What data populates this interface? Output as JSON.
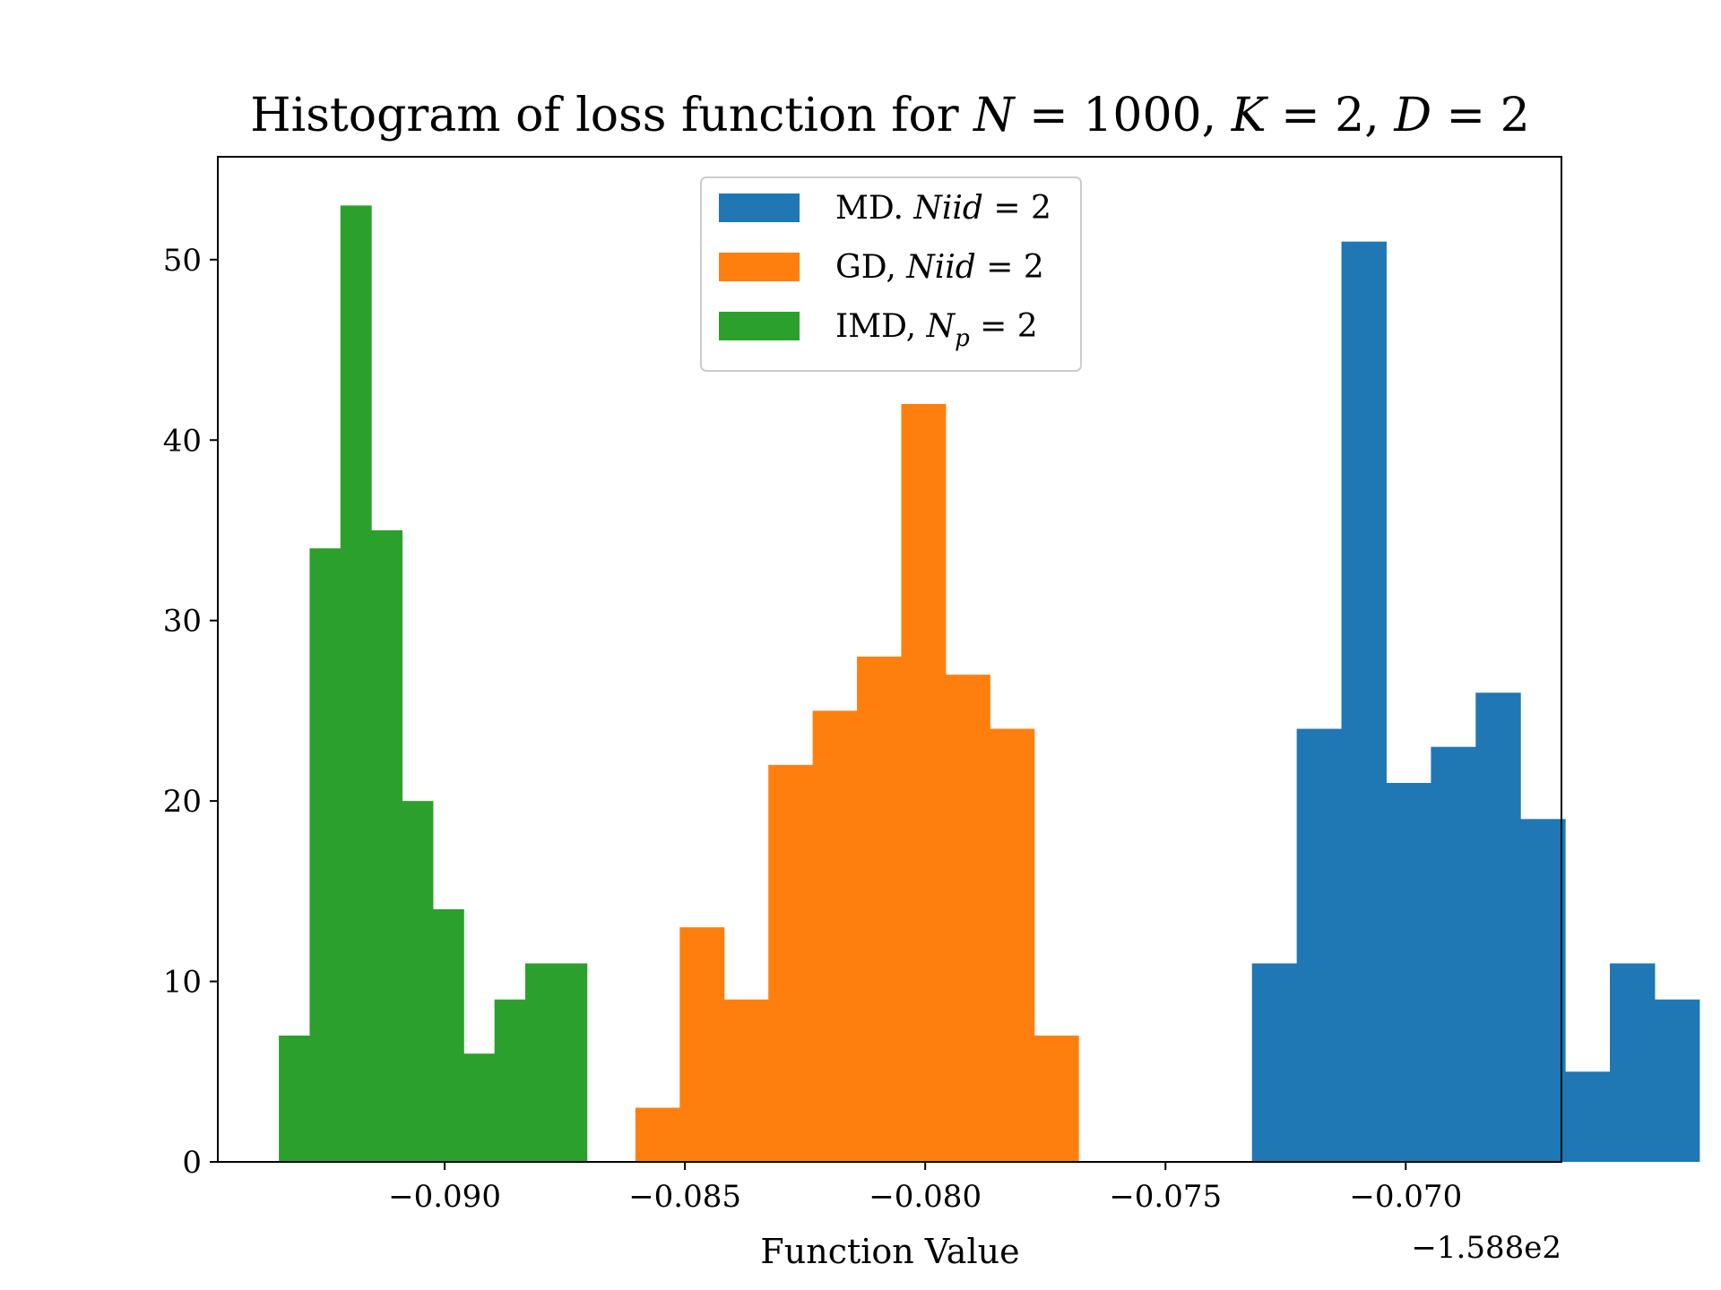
{
  "chart_data": {
    "type": "bar",
    "title": {
      "prefix": "Histogram of loss function for ",
      "n_var": "N",
      "n_eq": " = 1000, ",
      "k_var": "K",
      "k_eq": " = 2, ",
      "d_var": "D",
      "d_eq": " = 2"
    },
    "xlabel": "Function Value",
    "ylabel": "",
    "offset_label": "−1.588e2",
    "xlim": [
      -0.09472,
      -0.06676
    ],
    "ylim": [
      0,
      55.7
    ],
    "xticks": [
      -0.09,
      -0.085,
      -0.08,
      -0.075,
      -0.07
    ],
    "xtick_labels": [
      "−0.090",
      "−0.085",
      "−0.080",
      "−0.075",
      "−0.070"
    ],
    "yticks": [
      0,
      10,
      20,
      30,
      40,
      50
    ],
    "ytick_labels": [
      "0",
      "10",
      "20",
      "30",
      "40",
      "50"
    ],
    "grid": false,
    "legend_position": "top-center",
    "series": [
      {
        "name": "MD. Niid = 2",
        "legend_main": "MD. ",
        "legend_var": "Niid",
        "legend_sub": "",
        "legend_tail": " = 2",
        "color": "#1f77b4",
        "bin_start": -0.0732,
        "bin_width": 0.000931,
        "counts": [
          11,
          24,
          51,
          21,
          23,
          26,
          19,
          5,
          11,
          9
        ]
      },
      {
        "name": "GD, Niid = 2",
        "legend_main": "GD, ",
        "legend_var": "Niid",
        "legend_sub": "",
        "legend_tail": " = 2",
        "color": "#ff7f0e",
        "bin_start": -0.08603,
        "bin_width": 0.000922,
        "counts": [
          3,
          13,
          9,
          22,
          25,
          28,
          42,
          27,
          24,
          7
        ]
      },
      {
        "name": "IMD, Np = 2",
        "legend_main": "IMD, ",
        "legend_var": "N",
        "legend_sub": "p",
        "legend_tail": " = 2",
        "color": "#2ca02c",
        "bin_start": -0.09345,
        "bin_width": 0.000641,
        "counts": [
          7,
          34,
          53,
          35,
          20,
          14,
          6,
          9,
          11,
          11
        ]
      }
    ]
  }
}
